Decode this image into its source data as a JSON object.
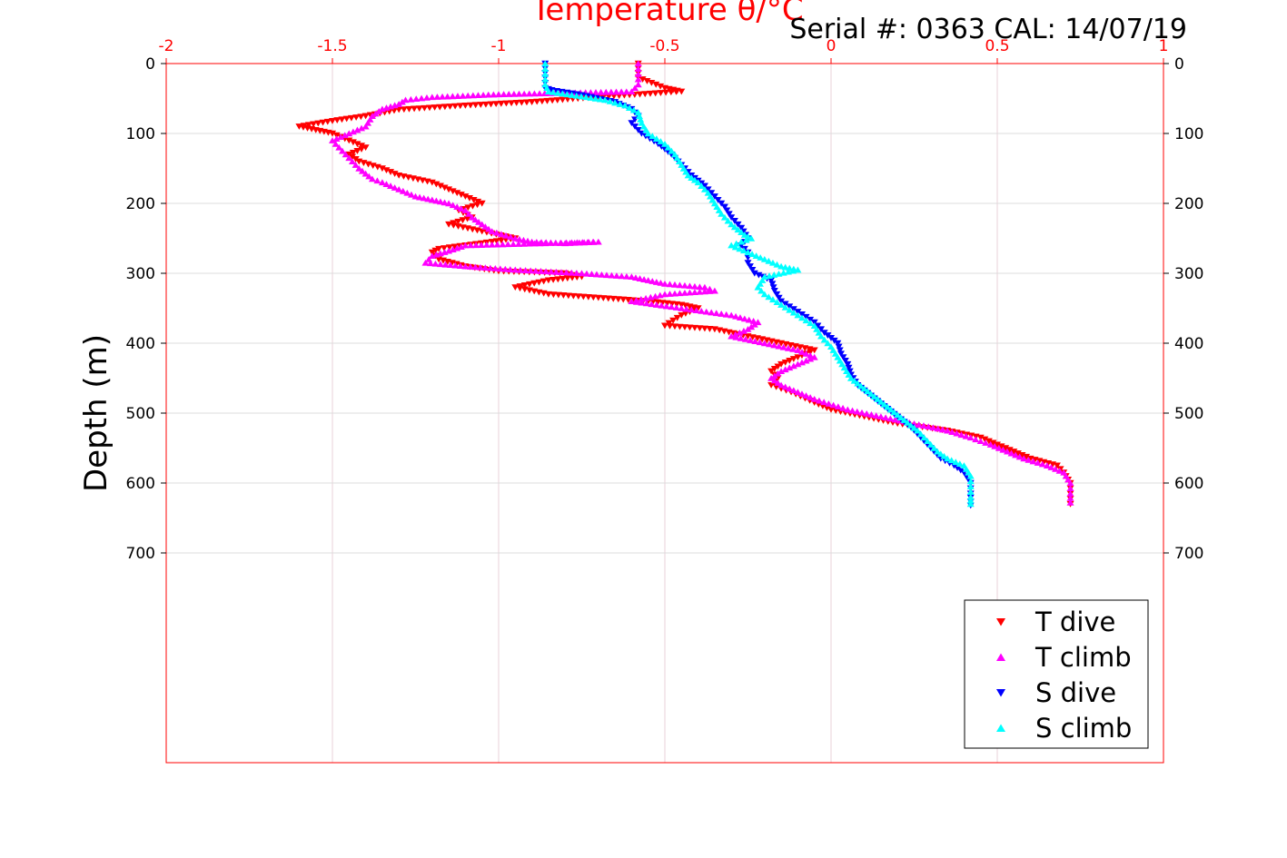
{
  "chart_data": {
    "type": "scatter",
    "title": "Temperature θ/°C",
    "annotation": "Serial #: 0363  CAL: 14/07/19",
    "xlabel": "Temperature θ/°C",
    "ylabel": "Depth (m)",
    "xlim": [
      -2,
      1
    ],
    "ylim": [
      0,
      1000
    ],
    "y_reversed": true,
    "xticks": [
      -2,
      -1.5,
      -1,
      -0.5,
      0,
      0.5,
      1
    ],
    "xtick_labels": [
      "-2",
      "-1.5",
      "-1",
      "-0.5",
      "0",
      "0.5",
      "1"
    ],
    "yticks": [
      0,
      100,
      200,
      300,
      400,
      500,
      600,
      700
    ],
    "ytick_labels": [
      "0",
      "100",
      "200",
      "300",
      "400",
      "500",
      "600",
      "700"
    ],
    "grid": true,
    "x_axis_position": "top",
    "legend_position": "bottom-right",
    "colors": {
      "axis_x": "#ff0000",
      "grid": "#e8d0d8",
      "axis_y": "#000000"
    },
    "series": [
      {
        "name": "T dive",
        "marker": "triangle-down",
        "color": "#ff0000",
        "points": [
          [
            -0.58,
            0
          ],
          [
            -0.58,
            20
          ],
          [
            -0.5,
            35
          ],
          [
            -0.45,
            40
          ],
          [
            -0.7,
            48
          ],
          [
            -0.9,
            55
          ],
          [
            -1.1,
            60
          ],
          [
            -1.3,
            66
          ],
          [
            -1.4,
            75
          ],
          [
            -1.5,
            82
          ],
          [
            -1.6,
            90
          ],
          [
            -1.55,
            95
          ],
          [
            -1.5,
            100
          ],
          [
            -1.45,
            110
          ],
          [
            -1.4,
            120
          ],
          [
            -1.45,
            130
          ],
          [
            -1.42,
            140
          ],
          [
            -1.35,
            150
          ],
          [
            -1.3,
            160
          ],
          [
            -1.2,
            170
          ],
          [
            -1.15,
            180
          ],
          [
            -1.1,
            190
          ],
          [
            -1.05,
            200
          ],
          [
            -1.12,
            210
          ],
          [
            -1.08,
            220
          ],
          [
            -1.15,
            230
          ],
          [
            -1.05,
            240
          ],
          [
            -0.95,
            250
          ],
          [
            -1.02,
            255
          ],
          [
            -1.1,
            260
          ],
          [
            -1.18,
            265
          ],
          [
            -1.2,
            270
          ],
          [
            -1.18,
            280
          ],
          [
            -1.1,
            290
          ],
          [
            -1.0,
            297
          ],
          [
            -0.8,
            300
          ],
          [
            -0.75,
            305
          ],
          [
            -0.85,
            310
          ],
          [
            -0.95,
            320
          ],
          [
            -0.85,
            330
          ],
          [
            -0.7,
            335
          ],
          [
            -0.55,
            340
          ],
          [
            -0.45,
            345
          ],
          [
            -0.4,
            350
          ],
          [
            -0.45,
            360
          ],
          [
            -0.5,
            375
          ],
          [
            -0.35,
            380
          ],
          [
            -0.25,
            390
          ],
          [
            -0.15,
            400
          ],
          [
            -0.05,
            410
          ],
          [
            -0.1,
            420
          ],
          [
            -0.15,
            430
          ],
          [
            -0.18,
            440
          ],
          [
            -0.16,
            450
          ],
          [
            -0.18,
            460
          ],
          [
            -0.12,
            470
          ],
          [
            -0.05,
            485
          ],
          [
            0.0,
            495
          ],
          [
            0.1,
            505
          ],
          [
            0.2,
            515
          ],
          [
            0.35,
            525
          ],
          [
            0.45,
            535
          ],
          [
            0.5,
            545
          ],
          [
            0.55,
            555
          ],
          [
            0.6,
            565
          ],
          [
            0.68,
            575
          ],
          [
            0.7,
            585
          ],
          [
            0.72,
            600
          ],
          [
            0.72,
            615
          ],
          [
            0.72,
            630
          ]
        ]
      },
      {
        "name": "T climb",
        "marker": "triangle-up",
        "color": "#ff00ff",
        "points": [
          [
            -0.58,
            0
          ],
          [
            -0.58,
            15
          ],
          [
            -0.58,
            30
          ],
          [
            -0.6,
            40
          ],
          [
            -0.8,
            42
          ],
          [
            -1.0,
            44
          ],
          [
            -1.2,
            48
          ],
          [
            -1.28,
            52
          ],
          [
            -1.3,
            58
          ],
          [
            -1.35,
            65
          ],
          [
            -1.38,
            75
          ],
          [
            -1.4,
            90
          ],
          [
            -1.45,
            100
          ],
          [
            -1.5,
            110
          ],
          [
            -1.48,
            120
          ],
          [
            -1.45,
            135
          ],
          [
            -1.42,
            150
          ],
          [
            -1.38,
            165
          ],
          [
            -1.35,
            170
          ],
          [
            -1.3,
            180
          ],
          [
            -1.25,
            190
          ],
          [
            -1.2,
            195
          ],
          [
            -1.15,
            200
          ],
          [
            -1.1,
            210
          ],
          [
            -1.08,
            220
          ],
          [
            -1.05,
            230
          ],
          [
            -1.02,
            240
          ],
          [
            -0.95,
            250
          ],
          [
            -0.9,
            255
          ],
          [
            -0.8,
            257
          ],
          [
            -0.7,
            255
          ],
          [
            -1.1,
            260
          ],
          [
            -1.15,
            268
          ],
          [
            -1.2,
            275
          ],
          [
            -1.22,
            285
          ],
          [
            -1.1,
            290
          ],
          [
            -0.95,
            295
          ],
          [
            -0.75,
            300
          ],
          [
            -0.6,
            305
          ],
          [
            -0.55,
            310
          ],
          [
            -0.5,
            315
          ],
          [
            -0.38,
            320
          ],
          [
            -0.35,
            325
          ],
          [
            -0.5,
            330
          ],
          [
            -0.6,
            340
          ],
          [
            -0.45,
            350
          ],
          [
            -0.3,
            360
          ],
          [
            -0.22,
            370
          ],
          [
            -0.25,
            380
          ],
          [
            -0.3,
            390
          ],
          [
            -0.2,
            400
          ],
          [
            -0.1,
            410
          ],
          [
            -0.05,
            420
          ],
          [
            -0.1,
            430
          ],
          [
            -0.15,
            440
          ],
          [
            -0.18,
            450
          ],
          [
            -0.15,
            460
          ],
          [
            -0.1,
            470
          ],
          [
            -0.05,
            480
          ],
          [
            0.05,
            495
          ],
          [
            0.15,
            505
          ],
          [
            0.25,
            515
          ],
          [
            0.35,
            525
          ],
          [
            0.42,
            535
          ],
          [
            0.48,
            545
          ],
          [
            0.53,
            555
          ],
          [
            0.58,
            565
          ],
          [
            0.65,
            575
          ],
          [
            0.7,
            585
          ],
          [
            0.72,
            600
          ],
          [
            0.72,
            615
          ],
          [
            0.72,
            628
          ]
        ]
      },
      {
        "name": "S dive",
        "marker": "triangle-down",
        "color": "#0000ff",
        "points": [
          [
            -0.86,
            0
          ],
          [
            -0.86,
            20
          ],
          [
            -0.86,
            35
          ],
          [
            -0.84,
            38
          ],
          [
            -0.75,
            45
          ],
          [
            -0.65,
            55
          ],
          [
            -0.6,
            65
          ],
          [
            -0.58,
            75
          ],
          [
            -0.6,
            85
          ],
          [
            -0.57,
            100
          ],
          [
            -0.52,
            115
          ],
          [
            -0.48,
            130
          ],
          [
            -0.45,
            145
          ],
          [
            -0.42,
            160
          ],
          [
            -0.38,
            175
          ],
          [
            -0.35,
            190
          ],
          [
            -0.32,
            205
          ],
          [
            -0.3,
            220
          ],
          [
            -0.27,
            235
          ],
          [
            -0.25,
            250
          ],
          [
            -0.27,
            260
          ],
          [
            -0.25,
            270
          ],
          [
            -0.25,
            285
          ],
          [
            -0.23,
            300
          ],
          [
            -0.18,
            310
          ],
          [
            -0.17,
            325
          ],
          [
            -0.15,
            340
          ],
          [
            -0.1,
            355
          ],
          [
            -0.05,
            370
          ],
          [
            -0.02,
            385
          ],
          [
            0.02,
            400
          ],
          [
            0.03,
            415
          ],
          [
            0.05,
            430
          ],
          [
            0.06,
            445
          ],
          [
            0.08,
            460
          ],
          [
            0.12,
            475
          ],
          [
            0.16,
            490
          ],
          [
            0.2,
            505
          ],
          [
            0.24,
            520
          ],
          [
            0.27,
            535
          ],
          [
            0.3,
            550
          ],
          [
            0.33,
            565
          ],
          [
            0.37,
            575
          ],
          [
            0.4,
            585
          ],
          [
            0.42,
            600
          ],
          [
            0.42,
            615
          ],
          [
            0.42,
            632
          ]
        ]
      },
      {
        "name": "S climb",
        "marker": "triangle-up",
        "color": "#00ffff",
        "points": [
          [
            -0.86,
            0
          ],
          [
            -0.86,
            15
          ],
          [
            -0.86,
            30
          ],
          [
            -0.85,
            40
          ],
          [
            -0.78,
            45
          ],
          [
            -0.68,
            52
          ],
          [
            -0.62,
            60
          ],
          [
            -0.58,
            70
          ],
          [
            -0.57,
            85
          ],
          [
            -0.55,
            100
          ],
          [
            -0.5,
            115
          ],
          [
            -0.47,
            130
          ],
          [
            -0.45,
            145
          ],
          [
            -0.43,
            160
          ],
          [
            -0.4,
            170
          ],
          [
            -0.37,
            185
          ],
          [
            -0.35,
            200
          ],
          [
            -0.33,
            215
          ],
          [
            -0.3,
            230
          ],
          [
            -0.26,
            245
          ],
          [
            -0.24,
            250
          ],
          [
            -0.3,
            260
          ],
          [
            -0.25,
            270
          ],
          [
            -0.2,
            280
          ],
          [
            -0.15,
            290
          ],
          [
            -0.1,
            295
          ],
          [
            -0.2,
            305
          ],
          [
            -0.22,
            320
          ],
          [
            -0.2,
            330
          ],
          [
            -0.15,
            345
          ],
          [
            -0.1,
            360
          ],
          [
            -0.05,
            375
          ],
          [
            -0.03,
            390
          ],
          [
            0.0,
            405
          ],
          [
            0.02,
            420
          ],
          [
            0.04,
            435
          ],
          [
            0.06,
            450
          ],
          [
            0.1,
            465
          ],
          [
            0.14,
            480
          ],
          [
            0.18,
            495
          ],
          [
            0.22,
            510
          ],
          [
            0.26,
            525
          ],
          [
            0.29,
            540
          ],
          [
            0.32,
            555
          ],
          [
            0.35,
            565
          ],
          [
            0.4,
            575
          ],
          [
            0.42,
            590
          ],
          [
            0.42,
            605
          ],
          [
            0.42,
            620
          ],
          [
            0.42,
            630
          ]
        ]
      }
    ]
  }
}
